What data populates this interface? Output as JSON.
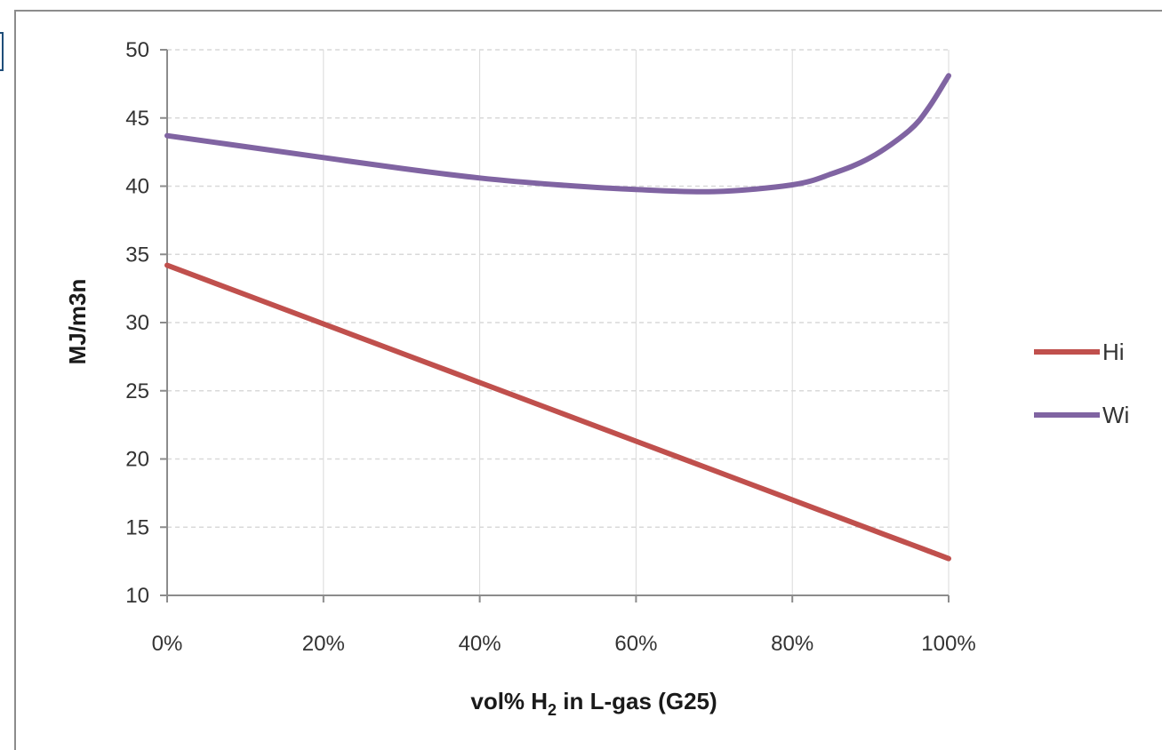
{
  "chart_data": {
    "type": "line",
    "x_ticks": [
      "0%",
      "20%",
      "40%",
      "60%",
      "80%",
      "100%"
    ],
    "x_values": [
      0,
      10,
      20,
      30,
      40,
      50,
      60,
      70,
      80,
      85,
      90,
      95,
      97.5,
      100
    ],
    "xlim": [
      0,
      100
    ],
    "y_ticks": [
      "10",
      "15",
      "20",
      "25",
      "30",
      "35",
      "40",
      "45",
      "50"
    ],
    "ylim": [
      10,
      50
    ],
    "xlabel": {
      "pre": "vol% H",
      "sub": "2",
      "post": " in L-gas (G25)"
    },
    "ylabel": "MJ/m3n",
    "grid": "horizontal-dashed",
    "legend_position": "right",
    "series": [
      {
        "name": "Hi",
        "color": "#c0504d",
        "values": [
          34.2,
          32.05,
          29.9,
          27.75,
          25.6,
          23.45,
          21.3,
          19.15,
          17.0,
          15.93,
          14.85,
          13.78,
          13.24,
          12.7
        ]
      },
      {
        "name": "Wi",
        "color": "#8064a2",
        "values": [
          43.7,
          42.9,
          42.1,
          41.3,
          40.6,
          40.1,
          39.75,
          39.6,
          40.1,
          40.9,
          42.1,
          44.1,
          45.8,
          48.1
        ]
      }
    ]
  }
}
